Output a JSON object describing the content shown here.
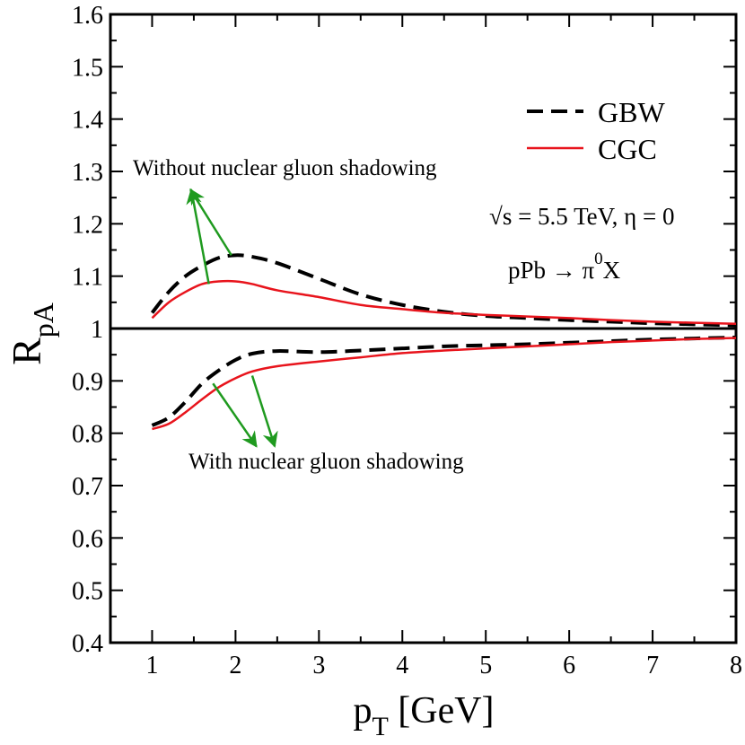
{
  "chart_data": {
    "type": "line",
    "title": "",
    "xlabel_main": "p",
    "xlabel_sub": "T",
    "xlabel_unit": " [GeV]",
    "ylabel_main": "R",
    "ylabel_sub": "pA",
    "xlim": [
      0.5,
      8
    ],
    "ylim": [
      0.4,
      1.6
    ],
    "xticks": [
      1,
      2,
      3,
      4,
      5,
      6,
      7,
      8
    ],
    "yticks": [
      0.4,
      0.5,
      0.6,
      0.7,
      0.8,
      0.9,
      1,
      1.1,
      1.2,
      1.3,
      1.4,
      1.5,
      1.6
    ],
    "ytick_labels": [
      "0.4",
      "0.5",
      "0.6",
      "0.7",
      "0.8",
      "0.9",
      "1",
      "1.1",
      "1.2",
      "1.3",
      "1.4",
      "1.5",
      "1.6"
    ],
    "reference_line": 1.0,
    "legend": {
      "position": "top-right",
      "entries": [
        {
          "name": "GBW",
          "style": "dashed",
          "color": "#000000"
        },
        {
          "name": "CGC",
          "style": "solid",
          "color": "#e8141c"
        }
      ]
    },
    "series": [
      {
        "name": "GBW",
        "group": "without-shadowing",
        "color": "#000000",
        "style": "dashed",
        "x": [
          1.0,
          1.2,
          1.4,
          1.6,
          1.8,
          2.0,
          2.2,
          2.5,
          3.0,
          3.5,
          4.0,
          4.5,
          5.0,
          5.5,
          6.0,
          6.5,
          7.0,
          7.5,
          8.0
        ],
        "y": [
          1.03,
          1.07,
          1.1,
          1.12,
          1.135,
          1.14,
          1.137,
          1.125,
          1.095,
          1.065,
          1.045,
          1.032,
          1.024,
          1.02,
          1.016,
          1.013,
          1.01,
          1.008,
          1.006
        ]
      },
      {
        "name": "CGC",
        "group": "without-shadowing",
        "color": "#e8141c",
        "style": "solid",
        "x": [
          1.0,
          1.2,
          1.4,
          1.6,
          1.8,
          2.0,
          2.2,
          2.5,
          3.0,
          3.5,
          4.0,
          4.5,
          5.0,
          5.5,
          6.0,
          6.5,
          7.0,
          7.5,
          8.0
        ],
        "y": [
          1.02,
          1.05,
          1.07,
          1.085,
          1.09,
          1.09,
          1.085,
          1.073,
          1.06,
          1.045,
          1.037,
          1.03,
          1.026,
          1.023,
          1.02,
          1.016,
          1.013,
          1.011,
          1.009
        ]
      },
      {
        "name": "GBW",
        "group": "with-shadowing",
        "color": "#000000",
        "style": "dashed",
        "x": [
          1.0,
          1.2,
          1.4,
          1.6,
          1.8,
          2.0,
          2.2,
          2.5,
          3.0,
          3.5,
          4.0,
          4.5,
          5.0,
          5.5,
          6.0,
          6.5,
          7.0,
          7.5,
          8.0
        ],
        "y": [
          0.815,
          0.83,
          0.86,
          0.895,
          0.92,
          0.94,
          0.952,
          0.957,
          0.955,
          0.958,
          0.962,
          0.966,
          0.968,
          0.97,
          0.973,
          0.976,
          0.979,
          0.981,
          0.983
        ]
      },
      {
        "name": "CGC",
        "group": "with-shadowing",
        "color": "#e8141c",
        "style": "solid",
        "x": [
          1.0,
          1.2,
          1.4,
          1.6,
          1.8,
          2.0,
          2.2,
          2.5,
          3.0,
          3.5,
          4.0,
          4.5,
          5.0,
          5.5,
          6.0,
          6.5,
          7.0,
          7.5,
          8.0
        ],
        "y": [
          0.808,
          0.818,
          0.84,
          0.865,
          0.888,
          0.905,
          0.918,
          0.928,
          0.937,
          0.945,
          0.953,
          0.958,
          0.962,
          0.966,
          0.97,
          0.974,
          0.977,
          0.98,
          0.982
        ]
      }
    ],
    "annotations": [
      {
        "id": "without",
        "text": "Without  nuclear gluon shadowing"
      },
      {
        "id": "with",
        "text": "With nuclear gluon shadowing"
      },
      {
        "id": "energy",
        "text": "√s = 5.5 TeV, η = 0"
      },
      {
        "id": "process_a",
        "text": "pPb → π"
      },
      {
        "id": "process_sup",
        "text": "0"
      },
      {
        "id": "process_b",
        "text": "X"
      }
    ],
    "arrows": [
      {
        "group": "without",
        "color": "#1f9a1f",
        "from": [
          1.95,
          1.14
        ],
        "to": [
          1.46,
          1.265
        ]
      },
      {
        "group": "without",
        "color": "#1f9a1f",
        "from": [
          1.68,
          1.085
        ],
        "to": [
          1.47,
          1.265
        ]
      },
      {
        "group": "with",
        "color": "#1f9a1f",
        "from": [
          1.73,
          0.895
        ],
        "to": [
          2.25,
          0.775
        ]
      },
      {
        "group": "with",
        "color": "#1f9a1f",
        "from": [
          2.2,
          0.91
        ],
        "to": [
          2.47,
          0.775
        ]
      }
    ]
  }
}
